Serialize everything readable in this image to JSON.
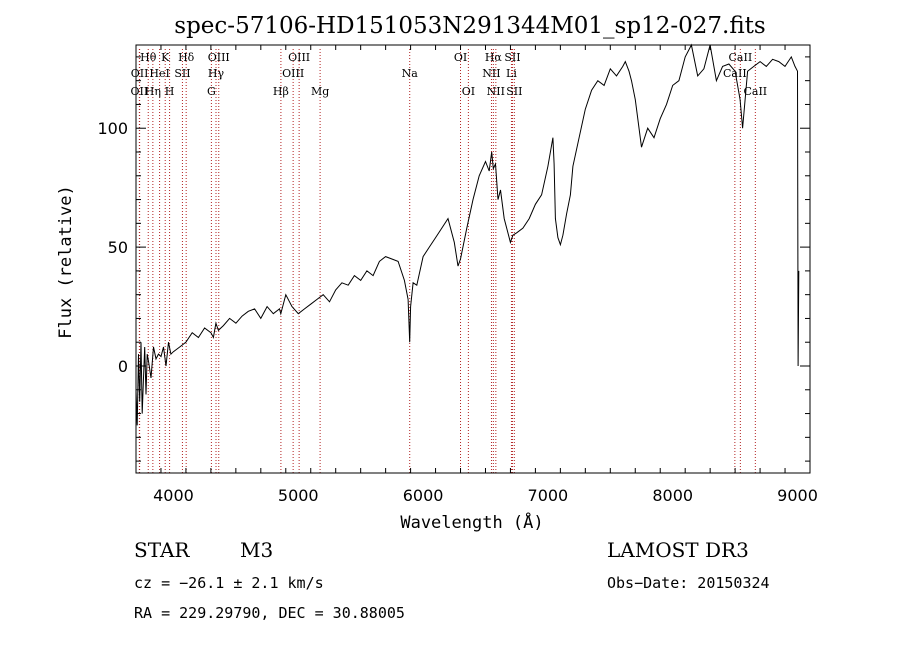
{
  "chart_data": {
    "type": "line",
    "title": "spec-57106-HD151053N291344M01_sp12-027.fits",
    "xlabel": "Wavelength (Å)",
    "ylabel": "Flux (relative)",
    "xlim": [
      3700,
      9100
    ],
    "ylim": [
      -45,
      135
    ],
    "xticks": [
      4000,
      5000,
      6000,
      7000,
      8000,
      9000
    ],
    "yticks": [
      0,
      50,
      100
    ],
    "series": [
      {
        "name": "flux",
        "x": [
          3700,
          3710,
          3720,
          3730,
          3740,
          3750,
          3760,
          3770,
          3780,
          3790,
          3800,
          3820,
          3840,
          3860,
          3880,
          3900,
          3920,
          3940,
          3960,
          3980,
          4000,
          4050,
          4100,
          4150,
          4200,
          4250,
          4300,
          4320,
          4340,
          4360,
          4400,
          4450,
          4500,
          4550,
          4600,
          4650,
          4700,
          4750,
          4800,
          4850,
          4860,
          4900,
          4950,
          5000,
          5050,
          5100,
          5150,
          5200,
          5250,
          5300,
          5350,
          5400,
          5450,
          5500,
          5550,
          5600,
          5650,
          5700,
          5750,
          5800,
          5850,
          5880,
          5893,
          5900,
          5920,
          5950,
          6000,
          6050,
          6100,
          6150,
          6200,
          6250,
          6280,
          6300,
          6350,
          6400,
          6450,
          6500,
          6530,
          6550,
          6563,
          6580,
          6600,
          6620,
          6650,
          6680,
          6700,
          6720,
          6750,
          6800,
          6850,
          6900,
          6950,
          7000,
          7040,
          7050,
          7060,
          7080,
          7100,
          7120,
          7150,
          7180,
          7200,
          7250,
          7300,
          7350,
          7400,
          7450,
          7500,
          7550,
          7600,
          7620,
          7650,
          7670,
          7700,
          7750,
          7800,
          7850,
          7900,
          7950,
          8000,
          8050,
          8100,
          8150,
          8200,
          8250,
          8300,
          8350,
          8400,
          8450,
          8500,
          8540,
          8560,
          8600,
          8650,
          8700,
          8750,
          8800,
          8850,
          8900,
          8950,
          8980,
          9000,
          9005,
          9010
        ],
        "y": [
          -10,
          -25,
          5,
          -15,
          10,
          -20,
          -5,
          8,
          -12,
          5,
          2,
          -5,
          8,
          3,
          5,
          4,
          8,
          0,
          10,
          5,
          6,
          8,
          10,
          14,
          12,
          16,
          14,
          12,
          18,
          15,
          17,
          20,
          18,
          21,
          23,
          24,
          20,
          25,
          22,
          24,
          22,
          30,
          25,
          22,
          24,
          26,
          28,
          30,
          27,
          32,
          35,
          34,
          38,
          36,
          40,
          38,
          44,
          46,
          45,
          44,
          36,
          28,
          10,
          25,
          35,
          34,
          46,
          50,
          54,
          58,
          62,
          52,
          42,
          45,
          58,
          70,
          80,
          86,
          82,
          90,
          83,
          85,
          70,
          74,
          62,
          56,
          52,
          55,
          56,
          58,
          62,
          68,
          72,
          84,
          96,
          85,
          62,
          54,
          51,
          55,
          64,
          72,
          84,
          96,
          108,
          116,
          120,
          118,
          125,
          122,
          126,
          128,
          124,
          120,
          112,
          92,
          100,
          96,
          104,
          110,
          118,
          120,
          130,
          135,
          122,
          125,
          135,
          120,
          126,
          127,
          124,
          112,
          100,
          124,
          126,
          128,
          126,
          129,
          128,
          126,
          130,
          126,
          124,
          0,
          40
        ]
      }
    ],
    "line_markers": [
      {
        "wl": 3727,
        "name": "OII",
        "row": 2
      },
      {
        "wl": 3729,
        "name": "OII",
        "row": 1
      },
      {
        "wl": 3798,
        "name": "Hθ",
        "row": 0
      },
      {
        "wl": 3835,
        "name": "Hη",
        "row": 2
      },
      {
        "wl": 3889,
        "name": "HeI",
        "row": 1
      },
      {
        "wl": 3934,
        "name": "K",
        "row": 0
      },
      {
        "wl": 3969,
        "name": "H",
        "row": 2
      },
      {
        "wl": 4072,
        "name": "SII",
        "row": 1
      },
      {
        "wl": 4102,
        "name": "Hδ",
        "row": 0
      },
      {
        "wl": 4304,
        "name": "G",
        "row": 2
      },
      {
        "wl": 4341,
        "name": "Hγ",
        "row": 1
      },
      {
        "wl": 4363,
        "name": "OIII",
        "row": 0
      },
      {
        "wl": 4861,
        "name": "Hβ",
        "row": 2
      },
      {
        "wl": 4959,
        "name": "OIII",
        "row": 1
      },
      {
        "wl": 5007,
        "name": "OIII",
        "row": 0
      },
      {
        "wl": 5175,
        "name": "Mg",
        "row": 2
      },
      {
        "wl": 5893,
        "name": "Na",
        "row": 1
      },
      {
        "wl": 6300,
        "name": "OI",
        "row": 0
      },
      {
        "wl": 6363,
        "name": "OI",
        "row": 2
      },
      {
        "wl": 6548,
        "name": "NII",
        "row": 1
      },
      {
        "wl": 6563,
        "name": "Hα",
        "row": 0
      },
      {
        "wl": 6583,
        "name": "NII",
        "row": 2
      },
      {
        "wl": 6708,
        "name": "Li",
        "row": 1
      },
      {
        "wl": 6716,
        "name": "SII",
        "row": 0
      },
      {
        "wl": 6731,
        "name": "SII",
        "row": 2
      },
      {
        "wl": 8498,
        "name": "CaII",
        "row": 1
      },
      {
        "wl": 8542,
        "name": "CaII",
        "row": 0
      },
      {
        "wl": 8662,
        "name": "CaII",
        "row": 2
      }
    ]
  },
  "info": {
    "object_class": "STAR",
    "subclass": "M3",
    "survey": "LAMOST DR3",
    "cz": "cz = −26.1 ± 2.1 km/s",
    "obs_date": "Obs−Date: 20150324",
    "coords": "RA = 229.29790, DEC =  30.88005"
  },
  "colors": {
    "marker": "#b22222",
    "spectrum": "#000000",
    "axes": "#000000"
  }
}
